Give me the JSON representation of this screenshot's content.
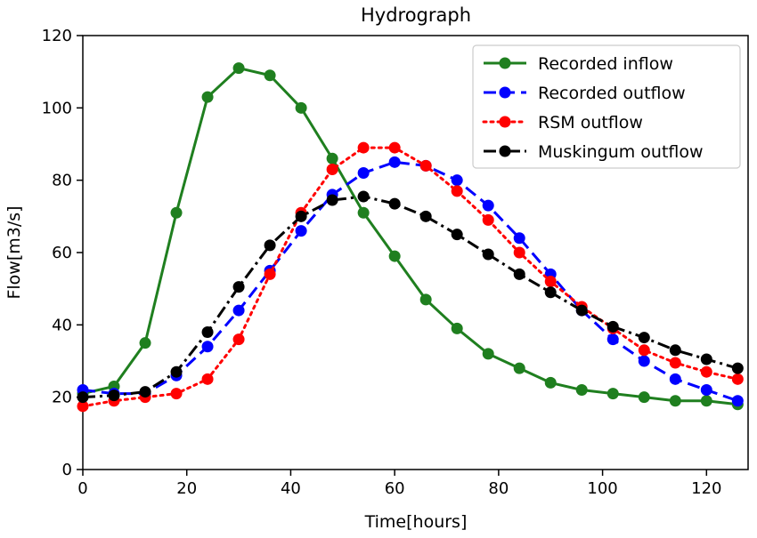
{
  "chart_data": {
    "type": "line",
    "title": "Hydrograph",
    "xlabel": "Time[hours]",
    "ylabel": "Flow[m3/s]",
    "xlim": [
      0,
      128
    ],
    "ylim": [
      0,
      120
    ],
    "xticks": [
      0,
      20,
      40,
      60,
      80,
      100,
      120
    ],
    "yticks": [
      0,
      20,
      40,
      60,
      80,
      100,
      120
    ],
    "grid": false,
    "legend_position": "top-right",
    "x": [
      0,
      6,
      12,
      18,
      24,
      30,
      36,
      42,
      48,
      54,
      60,
      66,
      72,
      78,
      84,
      90,
      96,
      102,
      108,
      114,
      120,
      126
    ],
    "series": [
      {
        "name": "Recorded inflow",
        "color": "#1f7f1f",
        "line_style": "solid",
        "values": [
          21,
          23,
          35,
          71,
          103,
          111,
          109,
          100,
          86,
          71,
          59,
          47,
          39,
          32,
          28,
          24,
          22,
          21,
          20,
          19,
          19,
          18
        ]
      },
      {
        "name": "Recorded outflow",
        "color": "#0000ff",
        "line_style": "dashed",
        "values": [
          22,
          21,
          21,
          26,
          34,
          44,
          55,
          66,
          76,
          82,
          85,
          84,
          80,
          73,
          64,
          54,
          44,
          36,
          30,
          25,
          22,
          19
        ]
      },
      {
        "name": "RSM outflow",
        "color": "#ff0000",
        "line_style": "dotted",
        "values": [
          17.5,
          19,
          20,
          21,
          25,
          36,
          54,
          71,
          83,
          89,
          89,
          84,
          77,
          69,
          60,
          52,
          45,
          39,
          33,
          29.5,
          27,
          25
        ]
      },
      {
        "name": "Muskingum outflow",
        "color": "#000000",
        "line_style": "dashdot",
        "values": [
          20,
          20.5,
          21.5,
          27,
          38,
          50.5,
          62,
          70,
          74.5,
          75.5,
          73.5,
          70,
          65,
          59.5,
          54,
          49,
          44,
          39.5,
          36.5,
          33,
          30.5,
          28
        ]
      }
    ]
  }
}
